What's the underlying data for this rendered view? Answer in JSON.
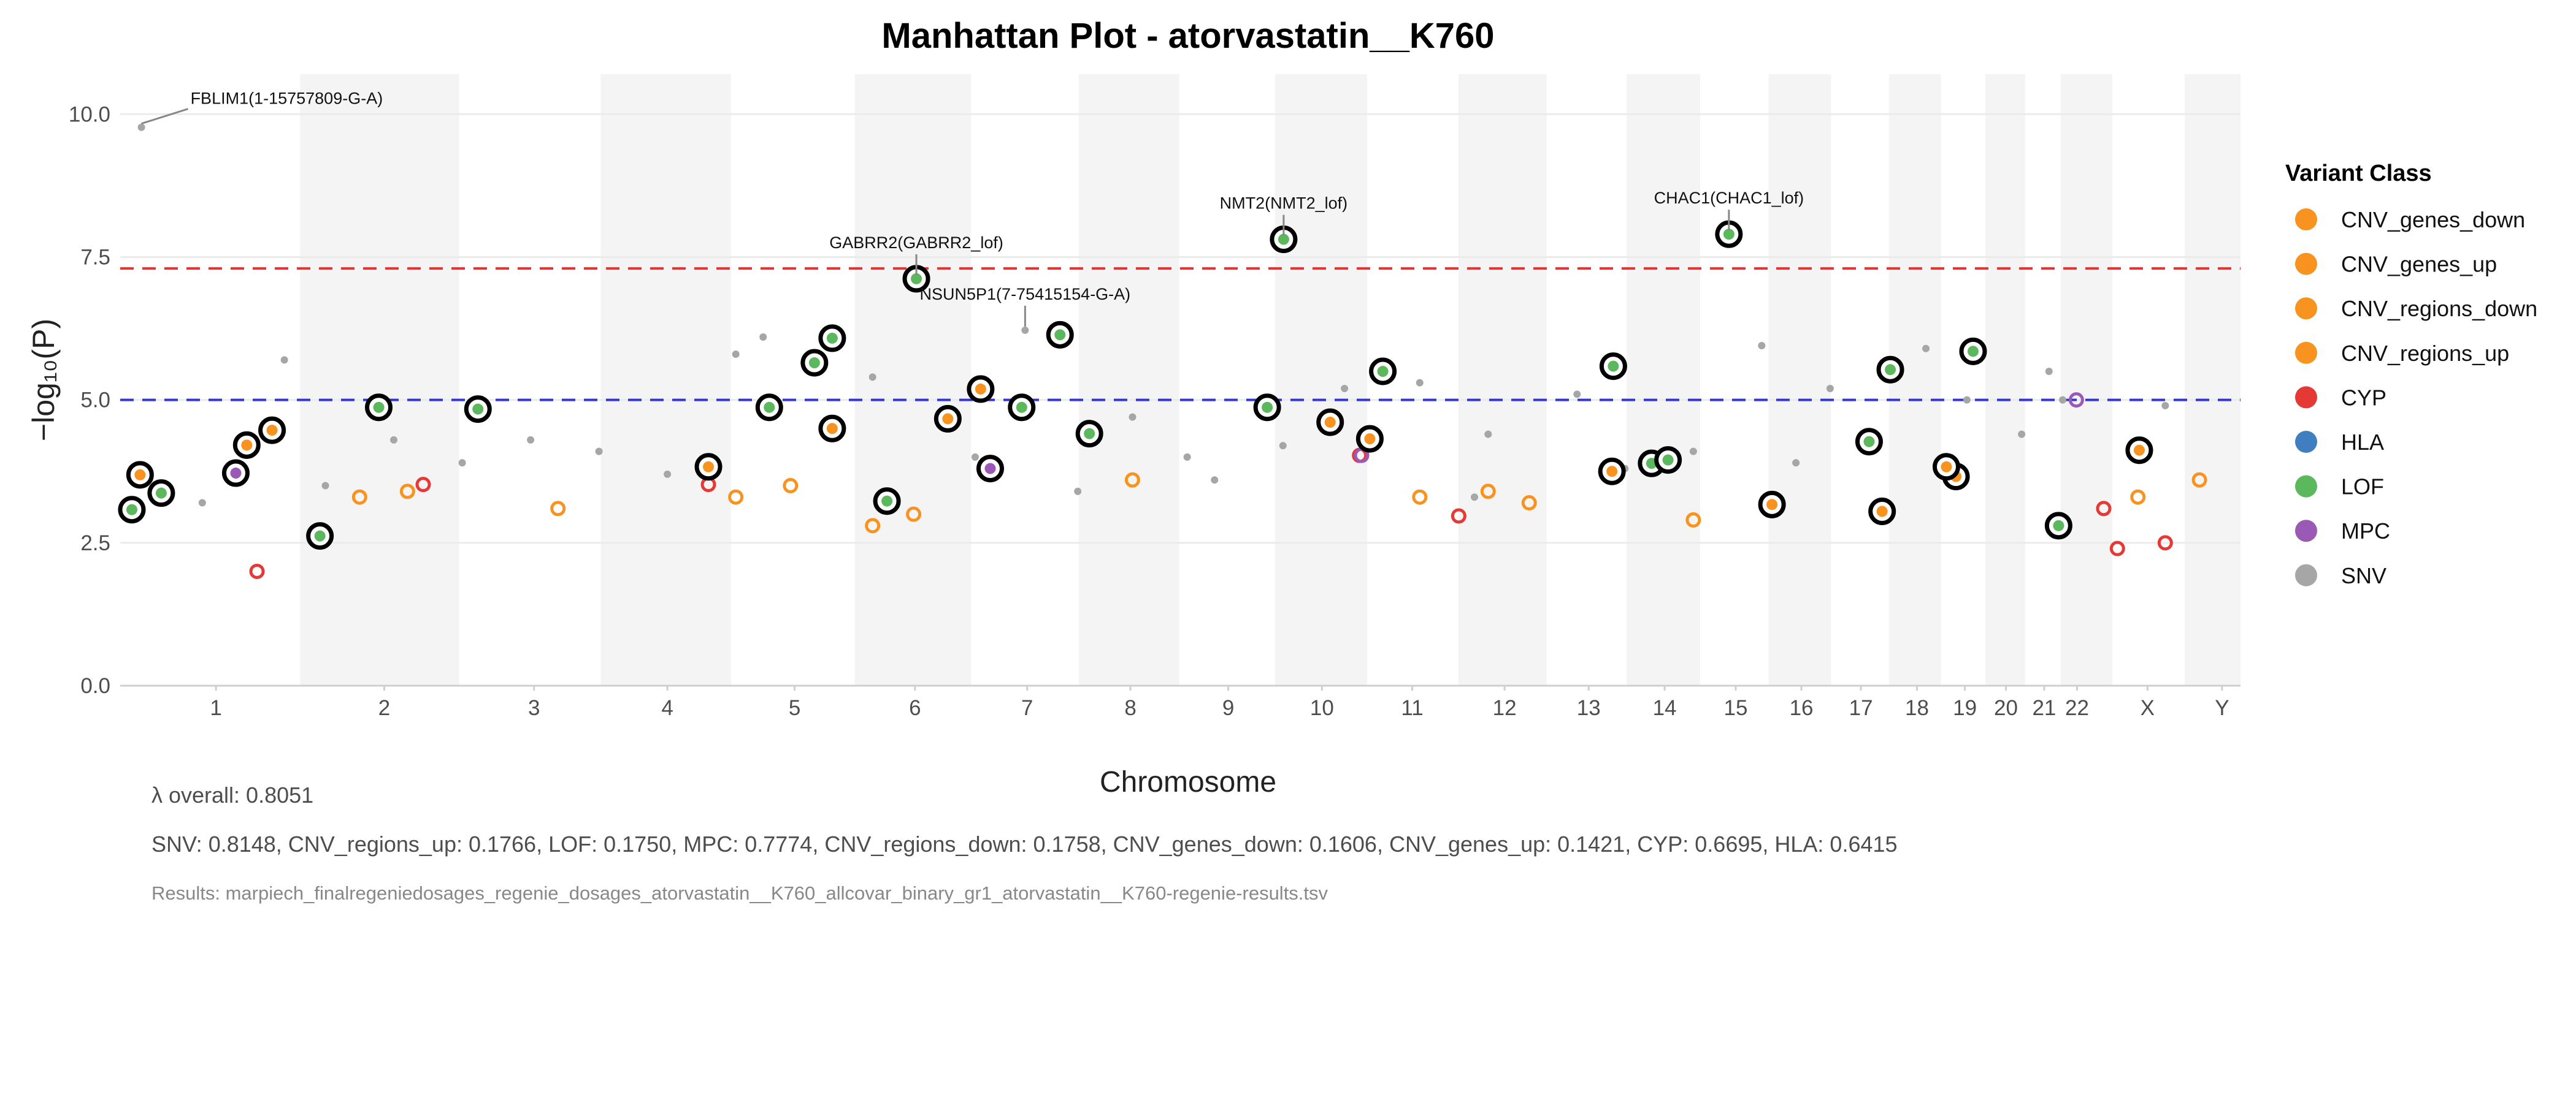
{
  "chart_data": {
    "type": "scatter",
    "title": "Manhattan Plot - atorvastatin__K760",
    "x_label": "Chromosome",
    "y_label": "−log₁₀(P)",
    "legend_title": "Variant Class",
    "xlim": [
      0,
      3100
    ],
    "ylim": [
      0,
      10.7
    ],
    "xticks": [
      {
        "value": 140,
        "label": "1"
      },
      {
        "value": 386,
        "label": "2"
      },
      {
        "value": 605,
        "label": "3"
      },
      {
        "value": 800,
        "label": "4"
      },
      {
        "value": 986,
        "label": "5"
      },
      {
        "value": 1162,
        "label": "6"
      },
      {
        "value": 1326,
        "label": "7"
      },
      {
        "value": 1477,
        "label": "8"
      },
      {
        "value": 1620,
        "label": "9"
      },
      {
        "value": 1757,
        "label": "10"
      },
      {
        "value": 1889,
        "label": "11"
      },
      {
        "value": 2024,
        "label": "12"
      },
      {
        "value": 2147,
        "label": "13"
      },
      {
        "value": 2258,
        "label": "14"
      },
      {
        "value": 2362,
        "label": "15"
      },
      {
        "value": 2458,
        "label": "16"
      },
      {
        "value": 2545,
        "label": "17"
      },
      {
        "value": 2627,
        "label": "18"
      },
      {
        "value": 2697,
        "label": "19"
      },
      {
        "value": 2757,
        "label": "20"
      },
      {
        "value": 2813,
        "label": "21"
      },
      {
        "value": 2861,
        "label": "22"
      },
      {
        "value": 2964,
        "label": "X"
      },
      {
        "value": 3073,
        "label": "Y"
      }
    ],
    "yticks": [
      {
        "value": 0,
        "label": "0.0"
      },
      {
        "value": 2.5,
        "label": "2.5"
      },
      {
        "value": 5,
        "label": "5.0"
      },
      {
        "value": 7.5,
        "label": "7.5"
      },
      {
        "value": 10,
        "label": "10.0"
      }
    ],
    "grid": true,
    "shade_alternate_chromosomes": true,
    "thresholds": [
      {
        "value": 7.3,
        "color": "#e8312f"
      },
      {
        "value": 5,
        "color": "#3434e0"
      }
    ],
    "legend_position": "right",
    "series": [
      {
        "name": "CNV_genes_down",
        "color": "#f7931e",
        "x": [
          1041,
          1160,
          2950
        ],
        "values": [
          4.5,
          3.0,
          3.3
        ],
        "highlight": [
          true,
          false,
          false
        ]
      },
      {
        "name": "CNV_genes_up",
        "color": "#f7931e",
        "x": [
          420,
          2060
        ],
        "values": [
          3.4,
          3.2
        ]
      },
      {
        "name": "CNV_regions_down",
        "color": "#f7931e",
        "x": [
          980,
          1900
        ],
        "values": [
          3.5,
          3.3
        ]
      },
      {
        "name": "CNV_regions_up",
        "color": "#f7931e",
        "x": [
          1258,
          222,
          1769,
          1827,
          185,
          2952,
          860,
          2181,
          29,
          2415,
          2576,
          2684,
          1210,
          2670,
          1480,
          640,
          2300,
          2000,
          3040,
          350,
          900,
          1100
        ],
        "values": [
          5.19,
          4.47,
          4.61,
          4.32,
          4.21,
          4.12,
          3.83,
          3.75,
          3.69,
          3.17,
          3.05,
          3.66,
          4.67,
          3.83,
          3.6,
          3.1,
          2.9,
          3.4,
          3.6,
          3.3,
          3.3,
          2.8
        ],
        "highlight": [
          true,
          true,
          true,
          true,
          true,
          true,
          true,
          true,
          true,
          true,
          true,
          true,
          true,
          true,
          false,
          false,
          false,
          false,
          false,
          false,
          false,
          false
        ]
      },
      {
        "name": "CYP",
        "color": "#e53935",
        "x": [
          443,
          1812,
          1957,
          860,
          2900,
          2920,
          2990,
          200
        ],
        "values": [
          3.52,
          4.03,
          2.97,
          3.52,
          3.1,
          2.4,
          2.5,
          2.0
        ]
      },
      {
        "name": "HLA",
        "color": "#3f7fbf",
        "x": [],
        "values": []
      },
      {
        "name": "LOF",
        "color": "#5cb85c",
        "x": [
          1164,
          1701,
          2352,
          1041,
          1374,
          1015,
          2709,
          1846,
          2183,
          2588,
          378,
          523,
          949,
          1318,
          1677,
          1417,
          2557,
          2239,
          2263,
          2834,
          1121,
          292,
          60,
          17
        ],
        "values": [
          7.12,
          7.81,
          7.9,
          6.08,
          6.14,
          5.65,
          5.85,
          5.5,
          5.59,
          5.53,
          4.87,
          4.84,
          4.87,
          4.87,
          4.87,
          4.41,
          4.27,
          3.89,
          3.95,
          2.8,
          3.23,
          2.62,
          3.37,
          3.08
        ],
        "highlight": [
          true,
          true,
          true,
          true,
          true,
          true,
          true,
          true,
          true,
          true,
          true,
          true,
          true,
          true,
          true,
          true,
          true,
          true,
          true,
          true,
          true,
          true,
          true,
          true
        ]
      },
      {
        "name": "MPC",
        "color": "#9b59b6",
        "x": [
          1272,
          169,
          1815,
          2860
        ],
        "values": [
          3.8,
          3.72,
          4.03,
          5.0
        ],
        "highlight": [
          true,
          true,
          false,
          false
        ]
      },
      {
        "name": "SNV",
        "color": "#a6a6a6",
        "x": [
          31,
          1323,
          240,
          900,
          940,
          2640,
          2820,
          2840,
          1790,
          1900,
          2130,
          2400,
          2500,
          400,
          600,
          700,
          1050,
          1100,
          1250,
          1480,
          1560,
          1700,
          2000,
          2300,
          2700,
          2990,
          120,
          300,
          500,
          1600,
          1980,
          2200,
          2450,
          2780,
          1400,
          800
        ],
        "values": [
          9.77,
          6.22,
          5.7,
          5.8,
          6.1,
          5.9,
          5.5,
          5.0,
          5.2,
          5.3,
          5.1,
          5.95,
          5.2,
          4.3,
          4.3,
          4.1,
          4.6,
          5.4,
          4.0,
          4.7,
          4.0,
          4.2,
          4.4,
          4.1,
          5.0,
          4.9,
          3.2,
          3.5,
          3.9,
          3.6,
          3.3,
          3.8,
          3.9,
          4.4,
          3.4,
          3.7
        ]
      }
    ],
    "annotations": [
      {
        "text": "FBLIM1(1-15757809-G-A)",
        "x": 31,
        "y": 9.77
      },
      {
        "text": "GABRR2(GABRR2_lof)",
        "x": 1164,
        "y": 7.12
      },
      {
        "text": "NSUN5P1(7-75415154-G-A)",
        "x": 1323,
        "y": 6.22
      },
      {
        "text": "NMT2(NMT2_lof)",
        "x": 1701,
        "y": 7.81
      },
      {
        "text": "CHAC1(CHAC1_lof)",
        "x": 2352,
        "y": 7.9
      }
    ],
    "notes": [
      "λ overall: 0.8051",
      "SNV: 0.8148, CNV_regions_up: 0.1766, LOF: 0.1750, MPC: 0.7774, CNV_regions_down: 0.1758, CNV_genes_down: 0.1606, CNV_genes_up: 0.1421, CYP: 0.6695, HLA: 0.6415",
      "Results: marpiech_finalregeniedosages_regenie_dosages_atorvastatin__K760_allcovar_binary_gr1_atorvastatin__K760-regenie-results.tsv"
    ]
  }
}
